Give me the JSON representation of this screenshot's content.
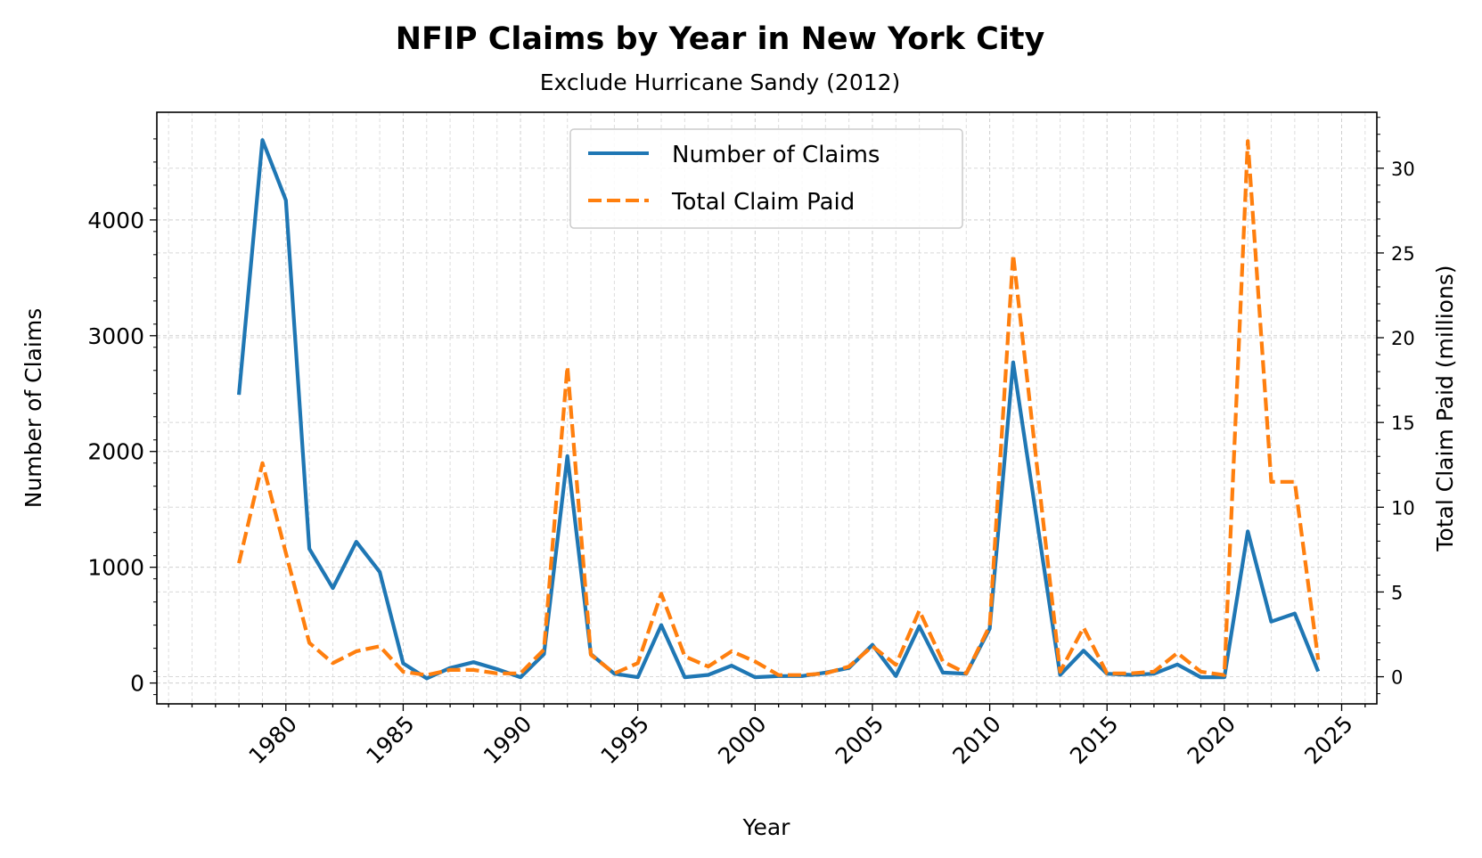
{
  "chart_data": {
    "type": "line",
    "title": "NFIP Claims by Year in New York City",
    "subtitle": "Exclude Hurricane Sandy (2012)",
    "xlabel": "Year",
    "ylabel": "Number of Claims",
    "y2label": "Total Claim Paid (millions)",
    "xlim": [
      1974.5,
      2026.5
    ],
    "ylim": [
      -180,
      4930
    ],
    "y2lim": [
      -1.6,
      33.3
    ],
    "xticks": [
      1980,
      1985,
      1990,
      1995,
      2000,
      2005,
      2010,
      2015,
      2020,
      2025
    ],
    "yticks": [
      0,
      1000,
      2000,
      3000,
      4000
    ],
    "y2ticks": [
      0,
      5,
      10,
      15,
      20,
      25,
      30
    ],
    "grid": true,
    "legend_position": "top-center",
    "x": [
      1978,
      1979,
      1980,
      1981,
      1982,
      1983,
      1984,
      1985,
      1986,
      1987,
      1988,
      1989,
      1990,
      1991,
      1992,
      1993,
      1994,
      1995,
      1996,
      1997,
      1998,
      1999,
      2000,
      2001,
      2002,
      2003,
      2004,
      2005,
      2006,
      2007,
      2008,
      2009,
      2010,
      2011,
      2013,
      2014,
      2015,
      2016,
      2017,
      2018,
      2019,
      2020,
      2021,
      2022,
      2023,
      2024
    ],
    "series": [
      {
        "name": "Number of Claims",
        "axis": "left",
        "color": "#1f77b4",
        "style": "solid",
        "values": [
          2490,
          4690,
          4170,
          1160,
          820,
          1220,
          960,
          170,
          40,
          130,
          180,
          120,
          50,
          250,
          1960,
          250,
          80,
          50,
          500,
          50,
          70,
          150,
          50,
          60,
          60,
          90,
          130,
          330,
          60,
          490,
          90,
          80,
          470,
          2770,
          70,
          280,
          80,
          70,
          80,
          160,
          50,
          50,
          1310,
          530,
          600,
          100
        ]
      },
      {
        "name": "Total Claim Paid",
        "axis": "right",
        "color": "#ff7f0e",
        "style": "dashed",
        "values": [
          6.7,
          12.6,
          7.3,
          2.0,
          0.8,
          1.5,
          1.8,
          0.3,
          0.1,
          0.4,
          0.4,
          0.2,
          0.2,
          1.6,
          18.3,
          1.3,
          0.2,
          0.8,
          4.9,
          1.2,
          0.6,
          1.5,
          0.9,
          0.1,
          0.1,
          0.2,
          0.6,
          1.8,
          0.7,
          3.9,
          0.9,
          0.2,
          3.0,
          24.9,
          0.3,
          2.9,
          0.2,
          0.2,
          0.3,
          1.4,
          0.3,
          0.1,
          31.6,
          11.5,
          11.5,
          1.0
        ]
      }
    ]
  }
}
